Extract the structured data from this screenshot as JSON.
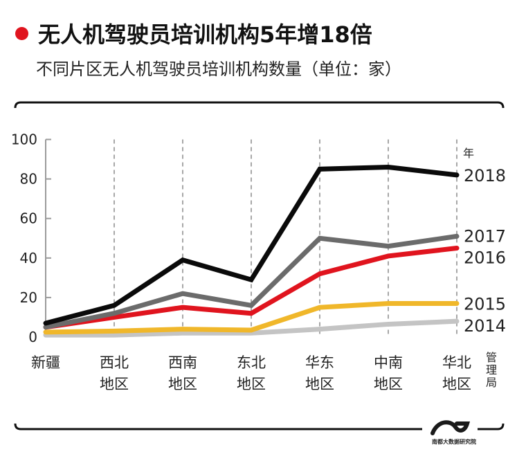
{
  "header": {
    "title": "无人机驾驶员培训机构5年增18倍",
    "subtitle": "不同片区无人机驾驶员培训机构数量（单位：家）",
    "accent_color": "#e0141e"
  },
  "chart_data": {
    "type": "line",
    "title": "无人机驾驶员培训机构5年增18倍",
    "subtitle": "不同片区无人机驾驶员培训机构数量（单位：家）",
    "xlabel": "",
    "ylabel": "",
    "ylim": [
      0,
      100
    ],
    "yticks": [
      0,
      20,
      40,
      60,
      80,
      100
    ],
    "grid": "vertical dashed lines at each region",
    "categories": [
      {
        "line1": "新疆",
        "line2": ""
      },
      {
        "line1": "西北",
        "line2": "地区"
      },
      {
        "line1": "西南",
        "line2": "地区"
      },
      {
        "line1": "东北",
        "line2": "地区"
      },
      {
        "line1": "华东",
        "line2": "地区"
      },
      {
        "line1": "中南",
        "line2": "地区"
      },
      {
        "line1": "华北",
        "line2": "地区"
      }
    ],
    "last_category_note": [
      "管",
      "理",
      "局"
    ],
    "legend_unit": "年",
    "legend_placement": "right (end-of-line labels)",
    "series": [
      {
        "name": "2014",
        "color": "#c4c4c4",
        "values": [
          1,
          1,
          2,
          2,
          4,
          6.5,
          8
        ]
      },
      {
        "name": "2015",
        "color": "#f0b72a",
        "values": [
          2.5,
          3,
          4,
          3.5,
          15,
          17,
          17
        ]
      },
      {
        "name": "2016",
        "color": "#e0141e",
        "values": [
          5,
          10,
          15,
          12,
          32,
          41,
          45
        ]
      },
      {
        "name": "2017",
        "color": "#6b6b6b",
        "values": [
          5,
          12,
          22,
          16,
          50,
          46,
          51
        ]
      },
      {
        "name": "2018",
        "color": "#0a0a0a",
        "values": [
          7,
          16,
          39,
          29,
          85,
          86,
          82
        ]
      }
    ]
  },
  "footer": {
    "logo_text": "南都大数据研究院"
  }
}
